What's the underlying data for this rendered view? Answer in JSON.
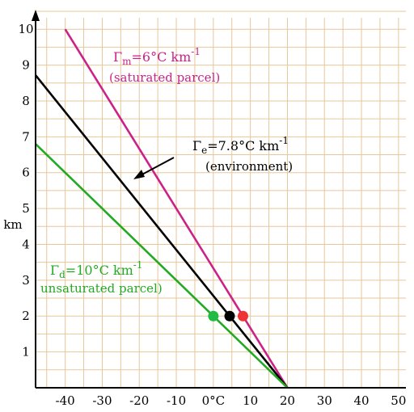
{
  "chart_data": {
    "type": "line",
    "xlabel": "",
    "ylabel": "km",
    "xlim": [
      -48,
      52
    ],
    "ylim": [
      0,
      10.5
    ],
    "grid": true,
    "x_ticks": [
      {
        "value": -40,
        "label": "-40"
      },
      {
        "value": -30,
        "label": "-30"
      },
      {
        "value": -20,
        "label": "-20"
      },
      {
        "value": -10,
        "label": "-10"
      },
      {
        "value": 0,
        "label": "0°C"
      },
      {
        "value": 10,
        "label": "10"
      },
      {
        "value": 20,
        "label": "20"
      },
      {
        "value": 30,
        "label": "30"
      },
      {
        "value": 40,
        "label": "40"
      },
      {
        "value": 50,
        "label": "50"
      }
    ],
    "y_ticks": [
      {
        "value": 1,
        "label": "1"
      },
      {
        "value": 2,
        "label": "2"
      },
      {
        "value": 3,
        "label": "3"
      },
      {
        "value": 4,
        "label": "4"
      },
      {
        "value": 5,
        "label": "5"
      },
      {
        "value": 6,
        "label": "6"
      },
      {
        "value": 7,
        "label": "7"
      },
      {
        "value": 8,
        "label": "8"
      },
      {
        "value": 9,
        "label": "9"
      },
      {
        "value": 10,
        "label": "10"
      }
    ],
    "series": [
      {
        "key": "moist",
        "color": "#cc2288",
        "x": [
          20,
          -40
        ],
        "y": [
          0,
          10
        ]
      },
      {
        "key": "env",
        "color": "#000000",
        "x": [
          20,
          -50.2
        ],
        "y": [
          0,
          9
        ]
      },
      {
        "key": "dry",
        "color": "#22aa22",
        "x": [
          20,
          -50
        ],
        "y": [
          0,
          7
        ]
      }
    ],
    "points": [
      {
        "x": 0,
        "y": 2,
        "color": "#22bb44"
      },
      {
        "x": 4.4,
        "y": 2,
        "color": "#000000"
      },
      {
        "x": 8,
        "y": 2,
        "color": "#ee3333"
      }
    ],
    "annotations": {
      "moist": {
        "gamma": "Γ",
        "sub": "m",
        "main": "=6°C km",
        "sup": "-1",
        "desc": "(saturated parcel)",
        "color": "#cc2288"
      },
      "env": {
        "gamma": "Γ",
        "sub": "e",
        "main": "=7.8°C km",
        "sup": "-1",
        "desc": "(environment)",
        "color": "#000000"
      },
      "dry": {
        "gamma": "Γ",
        "sub": "d",
        "main": "=10°C km",
        "sup": "-1",
        "desc": "unsaturated parcel)",
        "color": "#22aa22"
      }
    },
    "colors": {
      "grid": "#e6c79a",
      "axis": "#000000"
    }
  }
}
